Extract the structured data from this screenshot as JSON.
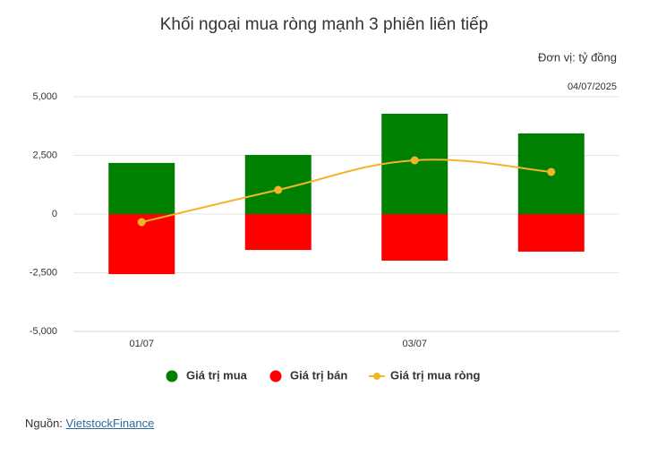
{
  "chart_data": {
    "type": "bar",
    "title": "Khối ngoại mua ròng mạnh 3 phiên liên tiếp",
    "subtitle": "Đơn vị: tỷ đồng",
    "annotation": "04/07/2025",
    "categories": [
      "01/07",
      null,
      "03/07",
      null
    ],
    "series": [
      {
        "name": "Giá trị mua",
        "color": "#008000",
        "values": [
          2180,
          2520,
          4275,
          3435
        ]
      },
      {
        "name": "Giá trị bán",
        "color": "#ff0000",
        "values": [
          -2560,
          -1530,
          -1985,
          -1600
        ]
      },
      {
        "name": "Giá trị mua ròng",
        "color": "#f2b52a",
        "type": "line",
        "values": [
          -345,
          1030,
          2290,
          1795
        ]
      }
    ],
    "ylim": [
      -5000,
      5000
    ],
    "yticks": [
      {
        "value": -5000,
        "label": "-5,000"
      },
      {
        "value": -2500,
        "label": "-2,500"
      },
      0,
      {
        "value": 2500,
        "label": "2,500"
      },
      {
        "value": 5000,
        "label": "5,000"
      }
    ],
    "grid": true
  },
  "source": {
    "prefix": "Nguồn: ",
    "link": "VietstockFinance"
  }
}
